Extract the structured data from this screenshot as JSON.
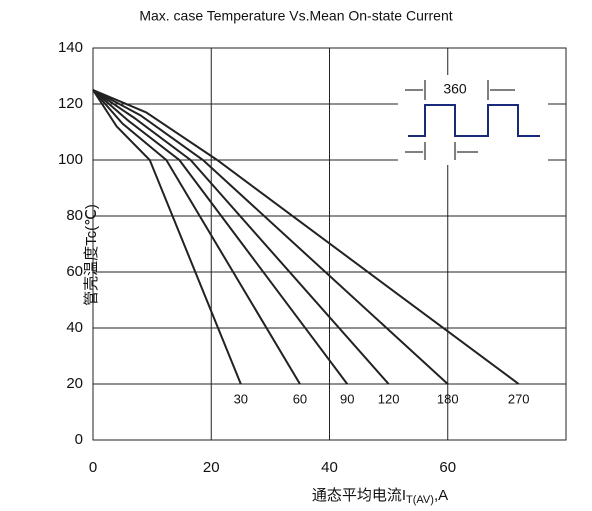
{
  "chart_data": {
    "type": "line",
    "title": "Max. case Temperature Vs.Mean On-state Current",
    "x_label": "通态平均电流I",
    "x_label_subscript": "T(AV)",
    "x_label_suffix": ",A",
    "y_label": "管壳温度Tc(℃)",
    "inset_label": "360",
    "xlim": [
      0,
      80
    ],
    "xticks": [
      0,
      20,
      40,
      60
    ],
    "ylim": [
      0,
      140
    ],
    "yticks": [
      0,
      20,
      40,
      60,
      80,
      100,
      120,
      140
    ],
    "grid": true,
    "color": "#222222",
    "series": [
      {
        "name": "30",
        "x": [
          0,
          4,
          9.6,
          25
        ],
        "values": [
          125,
          112,
          100,
          20
        ]
      },
      {
        "name": "60",
        "x": [
          0,
          5,
          12.4,
          35
        ],
        "values": [
          125,
          113,
          100,
          20
        ]
      },
      {
        "name": "90",
        "x": [
          0,
          6,
          14.6,
          43
        ],
        "values": [
          125,
          114,
          100,
          20
        ]
      },
      {
        "name": "120",
        "x": [
          0,
          7,
          16.5,
          50
        ],
        "values": [
          125,
          115,
          100,
          20
        ]
      },
      {
        "name": "180",
        "x": [
          0,
          8,
          18.6,
          60
        ],
        "values": [
          125,
          116,
          100,
          20
        ]
      },
      {
        "name": "270",
        "x": [
          0,
          9,
          21,
          72
        ],
        "values": [
          125,
          117,
          100,
          20
        ]
      }
    ]
  }
}
